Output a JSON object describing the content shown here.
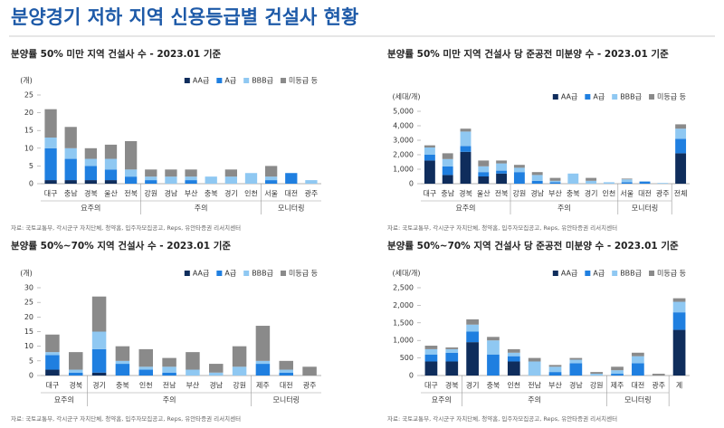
{
  "title": "분양경기 저하 지역 신용등급별 건설사 현황",
  "chart_data": [
    {
      "type": "bar",
      "stacked": true,
      "grid": false,
      "legend": "top-right",
      "title": "분양률 50% 미만 지역 건설사 수 - 2023.01 기준",
      "y_label": "(개)",
      "source": "자료: 국토교통부, 각시군구 자치단체, 청약홈, 입주자모집공고, Reps, 유안타증권 리서치센터",
      "categories": [
        "대구",
        "충남",
        "경북",
        "울산",
        "전북",
        "강원",
        "경남",
        "부산",
        "충북",
        "경기",
        "인천",
        "서울",
        "대전",
        "광주"
      ],
      "category_groups": [
        "요주의",
        "요주의",
        "요주의",
        "요주의",
        "요주의",
        "주의",
        "주의",
        "주의",
        "주의",
        "주의",
        "주의",
        "모니터링",
        "모니터링",
        "모니터링"
      ],
      "ylim": [
        0,
        25
      ],
      "yticks": [
        0,
        5,
        10,
        15,
        20,
        25
      ],
      "series": [
        {
          "name": "AA급",
          "color": "#0f2d5c",
          "values": [
            1,
            1,
            1,
            1,
            0,
            0,
            0,
            0,
            0,
            0,
            0,
            0,
            0,
            0
          ]
        },
        {
          "name": "A급",
          "color": "#1f7fe0",
          "values": [
            9,
            6,
            4,
            3,
            2,
            1,
            0,
            1,
            0,
            0,
            0,
            1,
            3,
            0
          ]
        },
        {
          "name": "BBB급",
          "color": "#8fc8f2",
          "values": [
            3,
            3,
            2,
            3,
            2,
            1,
            2,
            1,
            2,
            2,
            3,
            1,
            0,
            1
          ]
        },
        {
          "name": "미등급 등",
          "color": "#8a8a8a",
          "values": [
            8,
            6,
            3,
            4,
            8,
            2,
            2,
            2,
            0,
            2,
            0,
            3,
            0,
            0
          ]
        }
      ]
    },
    {
      "type": "bar",
      "stacked": true,
      "grid": false,
      "legend": "top-right",
      "title": "분양률 50% 미만 지역 건설사 당 준공전 미분양 수 - 2023.01 기준",
      "y_label": "(세대/개)",
      "source": "자료: 국토교통부, 각시군구 자치단체, 청약홈, 입주자모집공고, Reps, 유안타증권 리서치센터",
      "categories": [
        "대구",
        "충남",
        "경북",
        "울산",
        "전북",
        "강원",
        "경남",
        "부산",
        "충북",
        "경기",
        "인천",
        "서울",
        "대전",
        "광주",
        "전체"
      ],
      "category_groups": [
        "요주의",
        "요주의",
        "요주의",
        "요주의",
        "요주의",
        "주의",
        "주의",
        "주의",
        "주의",
        "주의",
        "주의",
        "모니터링",
        "모니터링",
        "모니터링",
        null
      ],
      "ylim": [
        0,
        5000
      ],
      "yticks": [
        0,
        {
          "value": 1000,
          "label": "1,000"
        },
        {
          "value": 2000,
          "label": "2,000"
        },
        {
          "value": 3000,
          "label": "3,000"
        },
        {
          "value": 4000,
          "label": "4,000"
        },
        {
          "value": 5000,
          "label": "5,000"
        }
      ],
      "series": [
        {
          "name": "AA급",
          "color": "#0f2d5c",
          "values": [
            1600,
            600,
            2200,
            500,
            700,
            0,
            0,
            0,
            0,
            0,
            0,
            0,
            0,
            0,
            2100
          ]
        },
        {
          "name": "A급",
          "color": "#1f7fe0",
          "values": [
            400,
            600,
            400,
            300,
            200,
            800,
            200,
            100,
            0,
            0,
            0,
            100,
            150,
            0,
            1000
          ]
        },
        {
          "name": "BBB급",
          "color": "#8fc8f2",
          "values": [
            500,
            500,
            1000,
            400,
            500,
            300,
            400,
            100,
            700,
            200,
            100,
            200,
            0,
            50,
            700
          ]
        },
        {
          "name": "미등급 등",
          "color": "#8a8a8a",
          "values": [
            150,
            400,
            200,
            400,
            200,
            200,
            200,
            200,
            0,
            200,
            0,
            50,
            0,
            0,
            300
          ]
        }
      ]
    },
    {
      "type": "bar",
      "stacked": true,
      "grid": false,
      "legend": "top-right",
      "title": "분양률 50%~70% 지역 건설사 수 - 2023.01 기준",
      "y_label": "(개)",
      "source": "자료: 국토교통부, 각시군구 자치단체, 청약홈, 입주자모집공고, Reps, 유안타증권 리서치센터",
      "categories": [
        "대구",
        "경북",
        "경기",
        "충북",
        "인천",
        "전남",
        "부산",
        "경남",
        "강원",
        "제주",
        "대전",
        "광주"
      ],
      "category_groups": [
        "요주의",
        "요주의",
        "주의",
        "주의",
        "주의",
        "주의",
        "주의",
        "주의",
        "주의",
        "모니터링",
        "모니터링",
        "모니터링"
      ],
      "ylim": [
        0,
        30
      ],
      "yticks": [
        0,
        5,
        10,
        15,
        20,
        25,
        30
      ],
      "series": [
        {
          "name": "AA급",
          "color": "#0f2d5c",
          "values": [
            2,
            0,
            1,
            0,
            0,
            0,
            0,
            0,
            0,
            0,
            0,
            0
          ]
        },
        {
          "name": "A급",
          "color": "#1f7fe0",
          "values": [
            5,
            1,
            8,
            4,
            2,
            1,
            0,
            0,
            0,
            4,
            1,
            0
          ]
        },
        {
          "name": "BBB급",
          "color": "#8fc8f2",
          "values": [
            1,
            1,
            6,
            1,
            1,
            2,
            2,
            1,
            3,
            1,
            1,
            0
          ]
        },
        {
          "name": "미등급 등",
          "color": "#8a8a8a",
          "values": [
            6,
            6,
            12,
            5,
            6,
            3,
            6,
            3,
            7,
            12,
            3,
            3
          ]
        }
      ]
    },
    {
      "type": "bar",
      "stacked": true,
      "grid": false,
      "legend": "top-right",
      "title": "분양률 50%~70% 지역 건설사 당 준공전 미분양 수 - 2023.01 기준",
      "y_label": "(세대/개)",
      "source": "자료: 국토교통부, 각시군구 자치단체, 청약홈, 입주자모집공고, Reps, 유안타증권 리서치센터",
      "categories": [
        "대구",
        "경북",
        "경기",
        "충북",
        "인천",
        "전남",
        "부산",
        "경남",
        "강원",
        "제주",
        "대전",
        "광주",
        "계"
      ],
      "category_groups": [
        "요주의",
        "요주의",
        "주의",
        "주의",
        "주의",
        "주의",
        "주의",
        "주의",
        "주의",
        "모니터링",
        "모니터링",
        "모니터링",
        null
      ],
      "ylim": [
        0,
        2500
      ],
      "yticks": [
        0,
        500,
        {
          "value": 1000,
          "label": "1,000"
        },
        {
          "value": 1500,
          "label": "1,500"
        },
        {
          "value": 2000,
          "label": "2,000"
        },
        {
          "value": 2500,
          "label": "2,500"
        }
      ],
      "series": [
        {
          "name": "AA급",
          "color": "#0f2d5c",
          "values": [
            400,
            400,
            950,
            0,
            400,
            0,
            0,
            0,
            0,
            0,
            0,
            0,
            1300
          ]
        },
        {
          "name": "A급",
          "color": "#1f7fe0",
          "values": [
            200,
            250,
            300,
            600,
            150,
            0,
            100,
            350,
            0,
            50,
            350,
            0,
            500
          ]
        },
        {
          "name": "BBB급",
          "color": "#8fc8f2",
          "values": [
            150,
            100,
            200,
            400,
            100,
            400,
            150,
            100,
            50,
            100,
            200,
            0,
            300
          ]
        },
        {
          "name": "미등급 등",
          "color": "#8a8a8a",
          "values": [
            100,
            50,
            150,
            100,
            100,
            100,
            50,
            50,
            50,
            100,
            100,
            50,
            100
          ]
        }
      ]
    }
  ]
}
